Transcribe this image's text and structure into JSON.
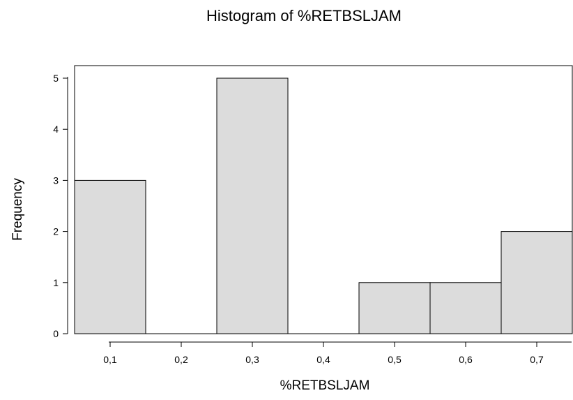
{
  "chart_data": {
    "type": "bar",
    "title": "Histogram of %RETBSLJAM",
    "xlabel": "%RETBSLJAM",
    "ylabel": "Frequency",
    "bins": [
      {
        "center": 0.1,
        "value": 3
      },
      {
        "center": 0.2,
        "value": 0
      },
      {
        "center": 0.3,
        "value": 5
      },
      {
        "center": 0.4,
        "value": 0
      },
      {
        "center": 0.5,
        "value": 1
      },
      {
        "center": 0.6,
        "value": 1
      },
      {
        "center": 0.7,
        "value": 2
      }
    ],
    "bin_width": 0.1,
    "x_ticks": [
      {
        "value": 0.1,
        "label": "0,1"
      },
      {
        "value": 0.2,
        "label": "0,2"
      },
      {
        "value": 0.3,
        "label": "0,3"
      },
      {
        "value": 0.4,
        "label": "0,4"
      },
      {
        "value": 0.5,
        "label": "0,5"
      },
      {
        "value": 0.6,
        "label": "0,6"
      },
      {
        "value": 0.7,
        "label": "0,7"
      }
    ],
    "y_ticks": [
      {
        "value": 0,
        "label": "0"
      },
      {
        "value": 1,
        "label": "1"
      },
      {
        "value": 2,
        "label": "2"
      },
      {
        "value": 3,
        "label": "3"
      },
      {
        "value": 4,
        "label": "4"
      },
      {
        "value": 5,
        "label": "5"
      }
    ],
    "xlim": [
      0.05,
      0.75
    ],
    "ylim": [
      0,
      5
    ],
    "bar_color": "#dcdcdc",
    "grid": false,
    "legend": "none"
  }
}
